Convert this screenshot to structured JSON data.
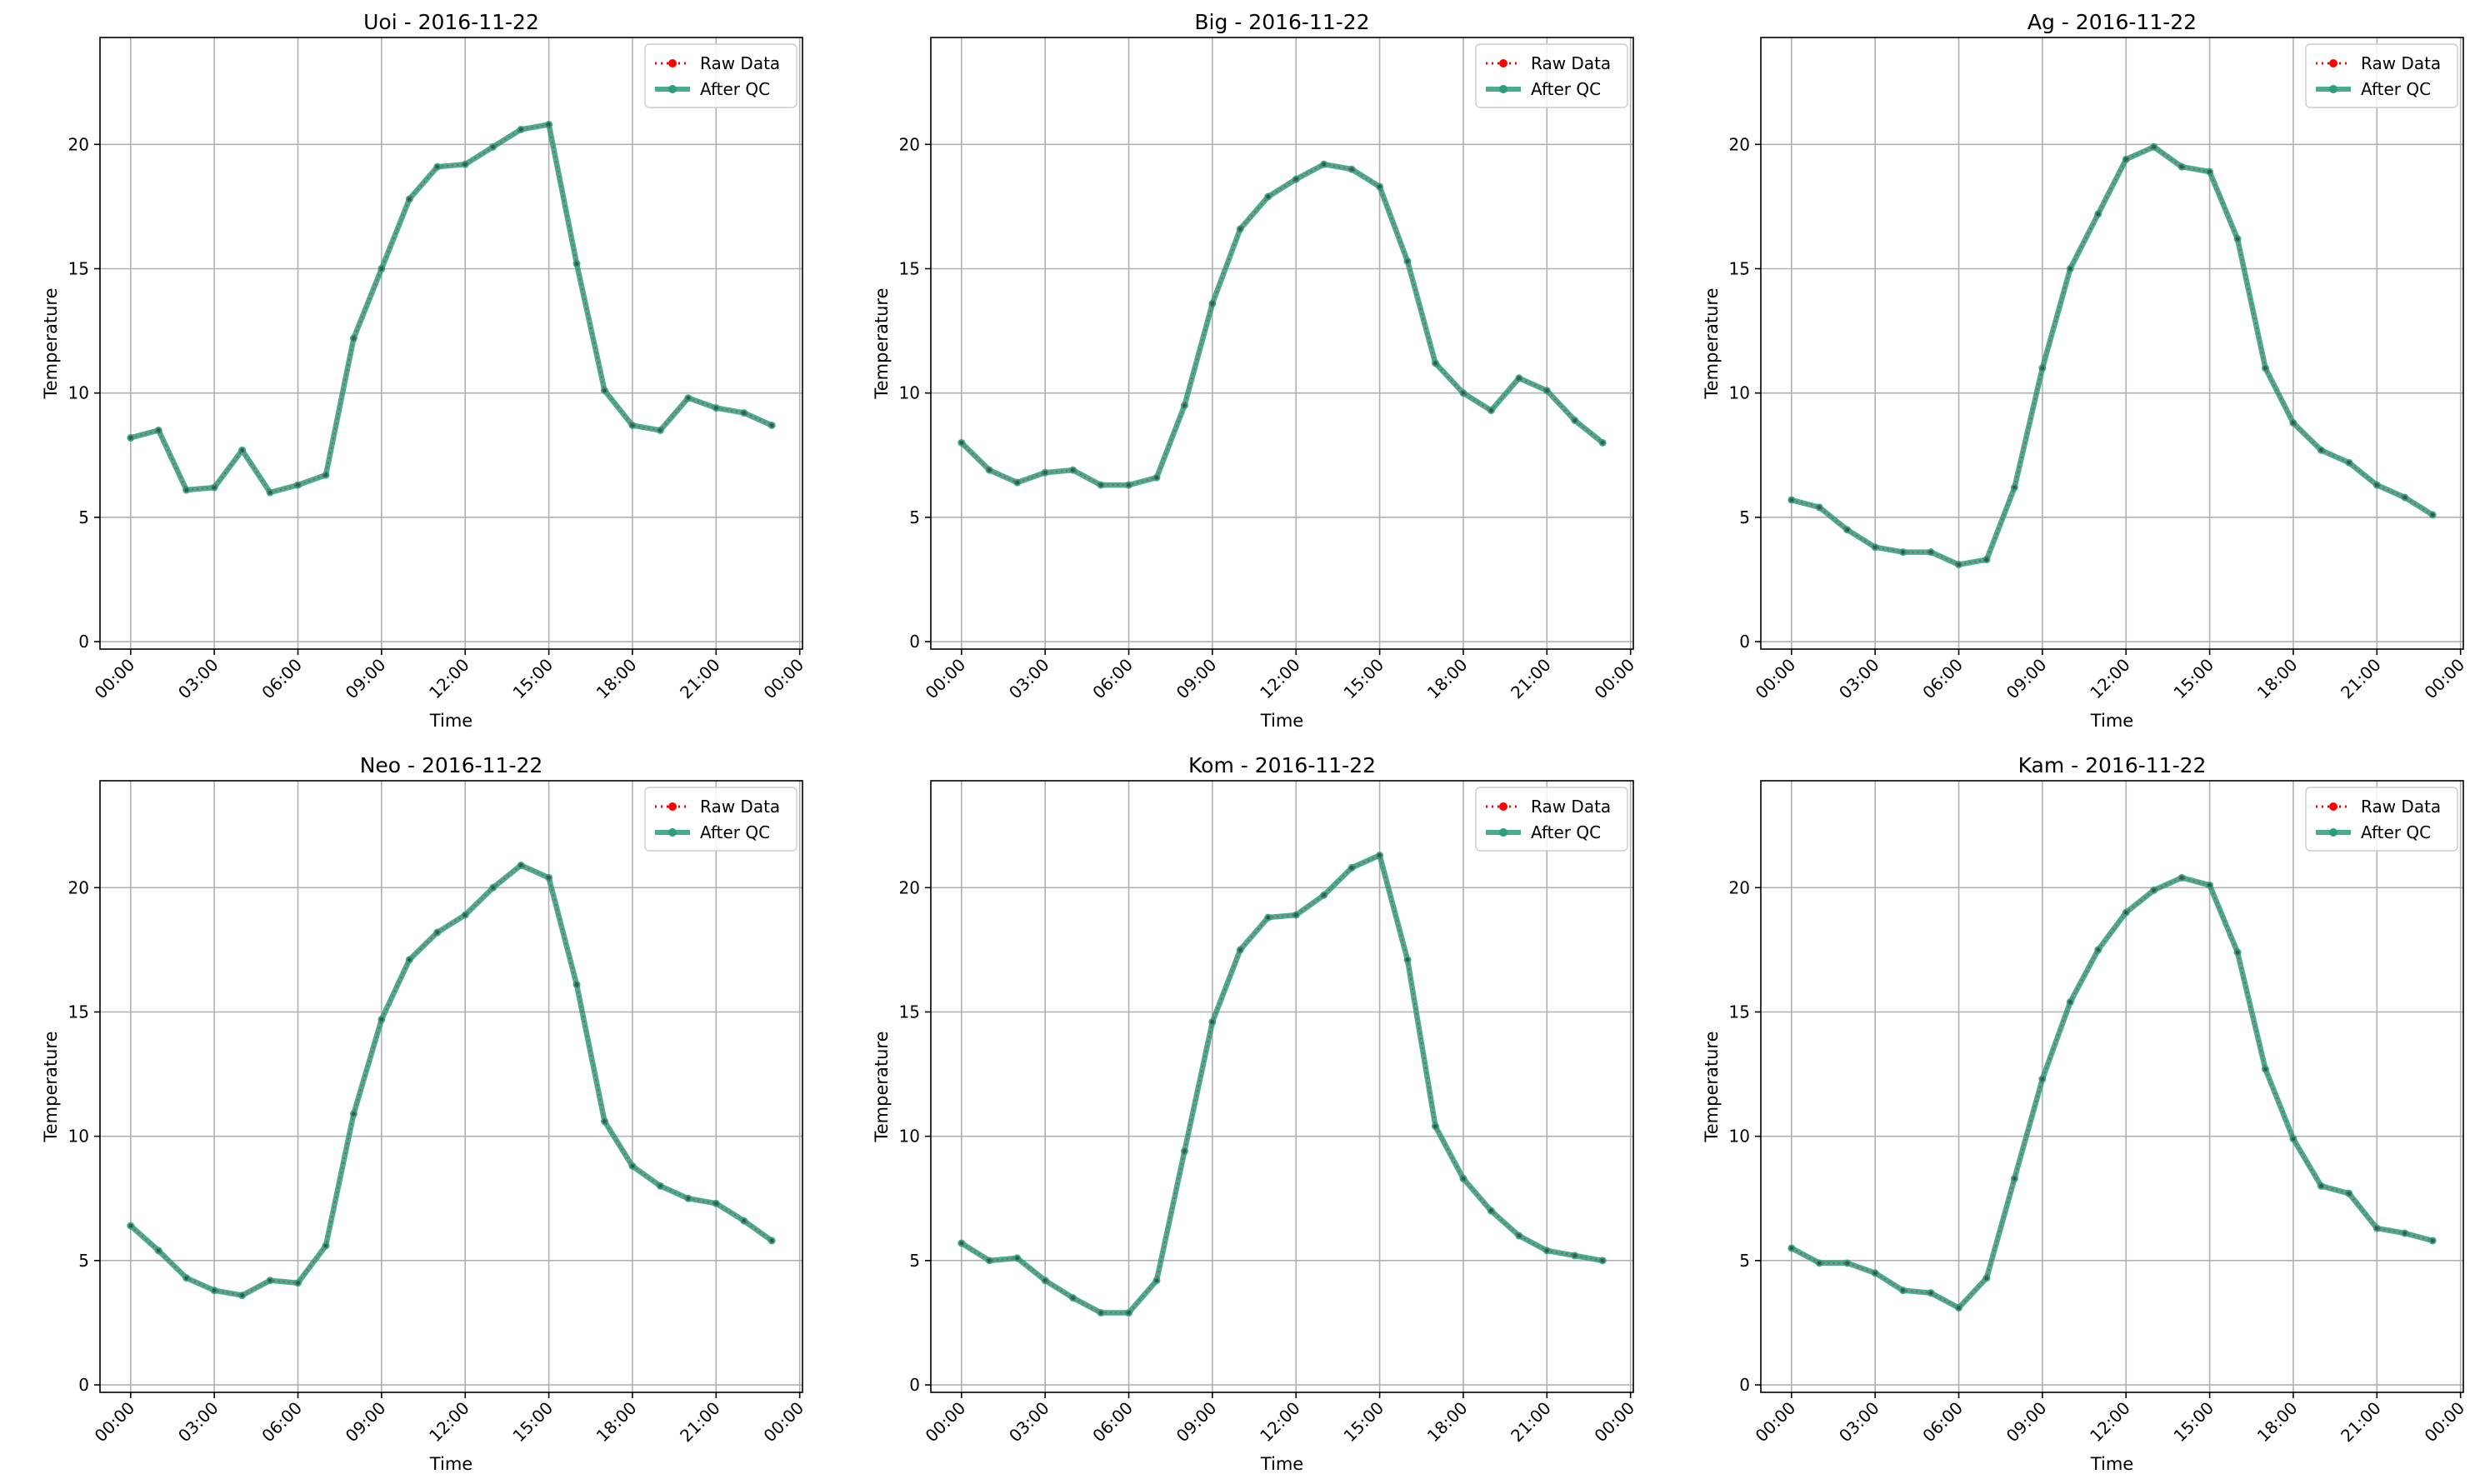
{
  "chart_data": [
    {
      "type": "line",
      "title": "Uoi - 2016-11-22",
      "xlabel": "Time",
      "ylabel": "Temperature",
      "xlim": [
        -1.1,
        24.1
      ],
      "ylim": [
        -0.3,
        24.3
      ],
      "xticks": [
        "00:00",
        "03:00",
        "06:00",
        "09:00",
        "12:00",
        "15:00",
        "18:00",
        "21:00",
        "00:00"
      ],
      "yticks": [
        0,
        5,
        10,
        15,
        20
      ],
      "grid": true,
      "legend": "top-right",
      "x_hours": [
        0,
        1,
        2,
        3,
        4,
        5,
        6,
        7,
        8,
        9,
        10,
        11,
        12,
        13,
        14,
        15,
        16,
        17,
        18,
        19,
        20,
        21,
        22,
        23
      ],
      "series": [
        {
          "name": "Raw Data",
          "color": "#ff0000",
          "style": "dotted",
          "values": [
            8.2,
            8.5,
            6.1,
            6.2,
            7.7,
            6.0,
            6.3,
            6.7,
            12.2,
            15.0,
            17.8,
            19.1,
            19.2,
            19.9,
            20.6,
            20.8,
            15.2,
            10.1,
            8.7,
            8.5,
            9.8,
            9.4,
            9.2,
            8.7
          ]
        },
        {
          "name": "After QC",
          "color": "#2a9d7a",
          "style": "solid",
          "values": [
            8.2,
            8.5,
            6.1,
            6.2,
            7.7,
            6.0,
            6.3,
            6.7,
            12.2,
            15.0,
            17.8,
            19.1,
            19.2,
            19.9,
            20.6,
            20.8,
            15.2,
            10.1,
            8.7,
            8.5,
            9.8,
            9.4,
            9.2,
            8.7
          ]
        }
      ]
    },
    {
      "type": "line",
      "title": "Big - 2016-11-22",
      "xlabel": "Time",
      "ylabel": "Temperature",
      "xlim": [
        -1.1,
        24.1
      ],
      "ylim": [
        -0.3,
        24.3
      ],
      "xticks": [
        "00:00",
        "03:00",
        "06:00",
        "09:00",
        "12:00",
        "15:00",
        "18:00",
        "21:00",
        "00:00"
      ],
      "yticks": [
        0,
        5,
        10,
        15,
        20
      ],
      "grid": true,
      "legend": "top-right",
      "x_hours": [
        0,
        1,
        2,
        3,
        4,
        5,
        6,
        7,
        8,
        9,
        10,
        11,
        12,
        13,
        14,
        15,
        16,
        17,
        18,
        19,
        20,
        21,
        22,
        23
      ],
      "series": [
        {
          "name": "Raw Data",
          "color": "#ff0000",
          "style": "dotted",
          "values": [
            8.0,
            6.9,
            6.4,
            6.8,
            6.9,
            6.3,
            6.3,
            6.6,
            9.5,
            13.6,
            16.6,
            17.9,
            18.6,
            19.2,
            19.0,
            18.3,
            15.3,
            11.2,
            10.0,
            9.3,
            10.6,
            10.1,
            8.9,
            8.0
          ]
        },
        {
          "name": "After QC",
          "color": "#2a9d7a",
          "style": "solid",
          "values": [
            8.0,
            6.9,
            6.4,
            6.8,
            6.9,
            6.3,
            6.3,
            6.6,
            9.5,
            13.6,
            16.6,
            17.9,
            18.6,
            19.2,
            19.0,
            18.3,
            15.3,
            11.2,
            10.0,
            9.3,
            10.6,
            10.1,
            8.9,
            8.0
          ]
        }
      ]
    },
    {
      "type": "line",
      "title": "Ag - 2016-11-22",
      "xlabel": "Time",
      "ylabel": "Temperature",
      "xlim": [
        -1.1,
        24.1
      ],
      "ylim": [
        -0.3,
        24.3
      ],
      "xticks": [
        "00:00",
        "03:00",
        "06:00",
        "09:00",
        "12:00",
        "15:00",
        "18:00",
        "21:00",
        "00:00"
      ],
      "yticks": [
        0,
        5,
        10,
        15,
        20
      ],
      "grid": true,
      "legend": "top-right",
      "x_hours": [
        0,
        1,
        2,
        3,
        4,
        5,
        6,
        7,
        8,
        9,
        10,
        11,
        12,
        13,
        14,
        15,
        16,
        17,
        18,
        19,
        20,
        21,
        22,
        23
      ],
      "series": [
        {
          "name": "Raw Data",
          "color": "#ff0000",
          "style": "dotted",
          "values": [
            5.7,
            5.4,
            4.5,
            3.8,
            3.6,
            3.6,
            3.1,
            3.3,
            6.2,
            11.0,
            15.0,
            17.2,
            19.4,
            19.9,
            19.1,
            18.9,
            16.2,
            11.0,
            8.8,
            7.7,
            7.2,
            6.3,
            5.8,
            5.1
          ]
        },
        {
          "name": "After QC",
          "color": "#2a9d7a",
          "style": "solid",
          "values": [
            5.7,
            5.4,
            4.5,
            3.8,
            3.6,
            3.6,
            3.1,
            3.3,
            6.2,
            11.0,
            15.0,
            17.2,
            19.4,
            19.9,
            19.1,
            18.9,
            16.2,
            11.0,
            8.8,
            7.7,
            7.2,
            6.3,
            5.8,
            5.1
          ]
        }
      ]
    },
    {
      "type": "line",
      "title": "Neo - 2016-11-22",
      "xlabel": "Time",
      "ylabel": "Temperature",
      "xlim": [
        -1.1,
        24.1
      ],
      "ylim": [
        -0.3,
        24.3
      ],
      "xticks": [
        "00:00",
        "03:00",
        "06:00",
        "09:00",
        "12:00",
        "15:00",
        "18:00",
        "21:00",
        "00:00"
      ],
      "yticks": [
        0,
        5,
        10,
        15,
        20
      ],
      "grid": true,
      "legend": "top-right",
      "x_hours": [
        0,
        1,
        2,
        3,
        4,
        5,
        6,
        7,
        8,
        9,
        10,
        11,
        12,
        13,
        14,
        15,
        16,
        17,
        18,
        19,
        20,
        21,
        22,
        23
      ],
      "series": [
        {
          "name": "Raw Data",
          "color": "#ff0000",
          "style": "dotted",
          "values": [
            6.4,
            5.4,
            4.3,
            3.8,
            3.6,
            4.2,
            4.1,
            5.6,
            10.9,
            14.7,
            17.1,
            18.2,
            18.9,
            20.0,
            20.9,
            20.4,
            16.1,
            10.6,
            8.8,
            8.0,
            7.5,
            7.3,
            6.6,
            5.8
          ]
        },
        {
          "name": "After QC",
          "color": "#2a9d7a",
          "style": "solid",
          "values": [
            6.4,
            5.4,
            4.3,
            3.8,
            3.6,
            4.2,
            4.1,
            5.6,
            10.9,
            14.7,
            17.1,
            18.2,
            18.9,
            20.0,
            20.9,
            20.4,
            16.1,
            10.6,
            8.8,
            8.0,
            7.5,
            7.3,
            6.6,
            5.8
          ]
        }
      ]
    },
    {
      "type": "line",
      "title": "Kom - 2016-11-22",
      "xlabel": "Time",
      "ylabel": "Temperature",
      "xlim": [
        -1.1,
        24.1
      ],
      "ylim": [
        -0.3,
        24.3
      ],
      "xticks": [
        "00:00",
        "03:00",
        "06:00",
        "09:00",
        "12:00",
        "15:00",
        "18:00",
        "21:00",
        "00:00"
      ],
      "yticks": [
        0,
        5,
        10,
        15,
        20
      ],
      "grid": true,
      "legend": "top-right",
      "x_hours": [
        0,
        1,
        2,
        3,
        4,
        5,
        6,
        7,
        8,
        9,
        10,
        11,
        12,
        13,
        14,
        15,
        16,
        17,
        18,
        19,
        20,
        21,
        22,
        23
      ],
      "series": [
        {
          "name": "Raw Data",
          "color": "#ff0000",
          "style": "dotted",
          "values": [
            5.7,
            5.0,
            5.1,
            4.2,
            3.5,
            2.9,
            2.9,
            4.2,
            9.4,
            14.6,
            17.5,
            18.8,
            18.9,
            19.7,
            20.8,
            21.3,
            17.1,
            10.4,
            8.3,
            7.0,
            6.0,
            5.4,
            5.2,
            5.0
          ]
        },
        {
          "name": "After QC",
          "color": "#2a9d7a",
          "style": "solid",
          "values": [
            5.7,
            5.0,
            5.1,
            4.2,
            3.5,
            2.9,
            2.9,
            4.2,
            9.4,
            14.6,
            17.5,
            18.8,
            18.9,
            19.7,
            20.8,
            21.3,
            17.1,
            10.4,
            8.3,
            7.0,
            6.0,
            5.4,
            5.2,
            5.0
          ]
        }
      ]
    },
    {
      "type": "line",
      "title": "Kam - 2016-11-22",
      "xlabel": "Time",
      "ylabel": "Temperature",
      "xlim": [
        -1.1,
        24.1
      ],
      "ylim": [
        -0.3,
        24.3
      ],
      "xticks": [
        "00:00",
        "03:00",
        "06:00",
        "09:00",
        "12:00",
        "15:00",
        "18:00",
        "21:00",
        "00:00"
      ],
      "yticks": [
        0,
        5,
        10,
        15,
        20
      ],
      "grid": true,
      "legend": "top-right",
      "x_hours": [
        0,
        1,
        2,
        3,
        4,
        5,
        6,
        7,
        8,
        9,
        10,
        11,
        12,
        13,
        14,
        15,
        16,
        17,
        18,
        19,
        20,
        21,
        22,
        23
      ],
      "series": [
        {
          "name": "Raw Data",
          "color": "#ff0000",
          "style": "dotted",
          "values": [
            5.5,
            4.9,
            4.9,
            4.5,
            3.8,
            3.7,
            3.1,
            4.3,
            8.3,
            12.3,
            15.4,
            17.5,
            19.0,
            19.9,
            20.4,
            20.1,
            17.4,
            12.7,
            9.9,
            8.0,
            7.7,
            6.3,
            6.1,
            5.8
          ]
        },
        {
          "name": "After QC",
          "color": "#2a9d7a",
          "style": "solid",
          "values": [
            5.5,
            4.9,
            4.9,
            4.5,
            3.8,
            3.7,
            3.1,
            4.3,
            8.3,
            12.3,
            15.4,
            17.5,
            19.0,
            19.9,
            20.4,
            20.1,
            17.4,
            12.7,
            9.9,
            8.0,
            7.7,
            6.3,
            6.1,
            5.8
          ]
        }
      ]
    }
  ]
}
